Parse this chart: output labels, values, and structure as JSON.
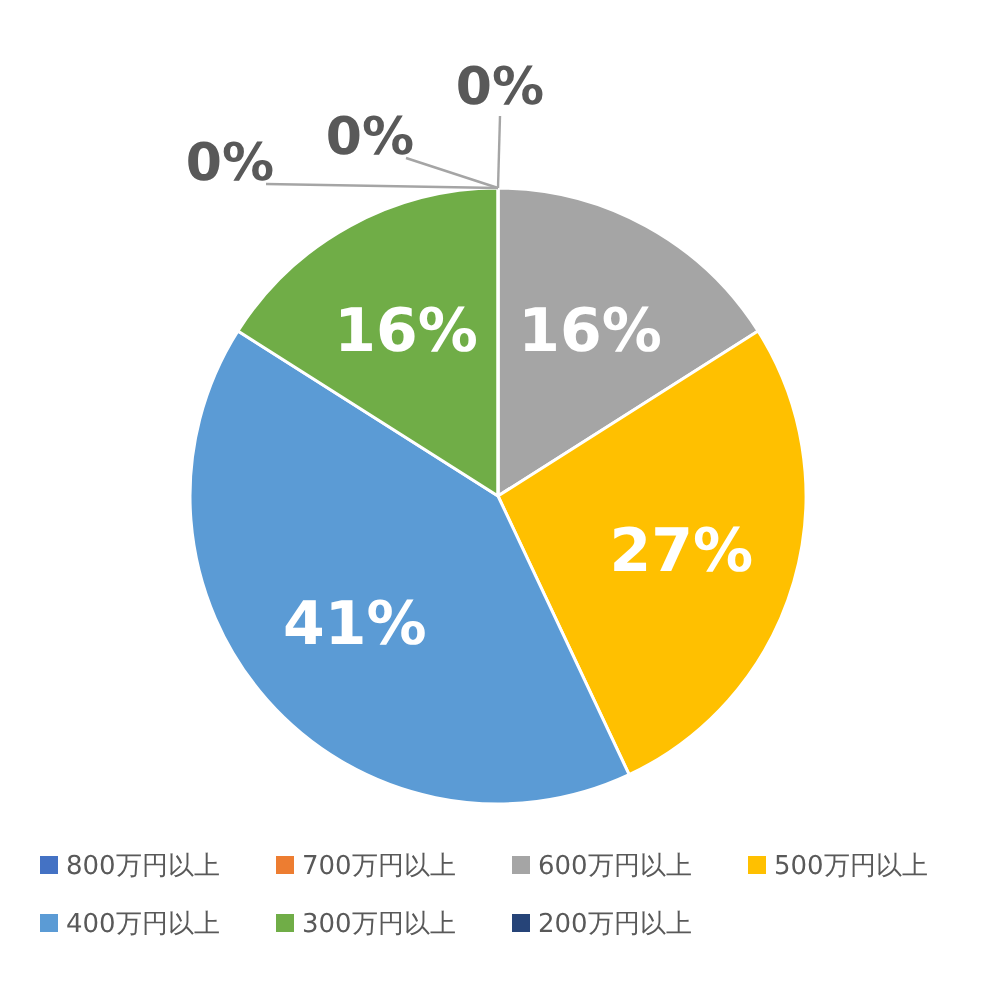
{
  "chart_data": {
    "type": "pie",
    "categories": [
      "800万円以上",
      "700万円以上",
      "600万円以上",
      "500万円以上",
      "400万円以上",
      "300万円以上",
      "200万円以上"
    ],
    "values": [
      0,
      0,
      16,
      27,
      41,
      16,
      0
    ],
    "colors": [
      "#4472c4",
      "#ed7d31",
      "#a5a5a5",
      "#ffc000",
      "#5b9bd5",
      "#70ad47",
      "#264478"
    ],
    "value_labels": [
      "0%",
      "0%",
      "16%",
      "27%",
      "41%",
      "16%",
      "0%"
    ],
    "legend": "bottom"
  }
}
